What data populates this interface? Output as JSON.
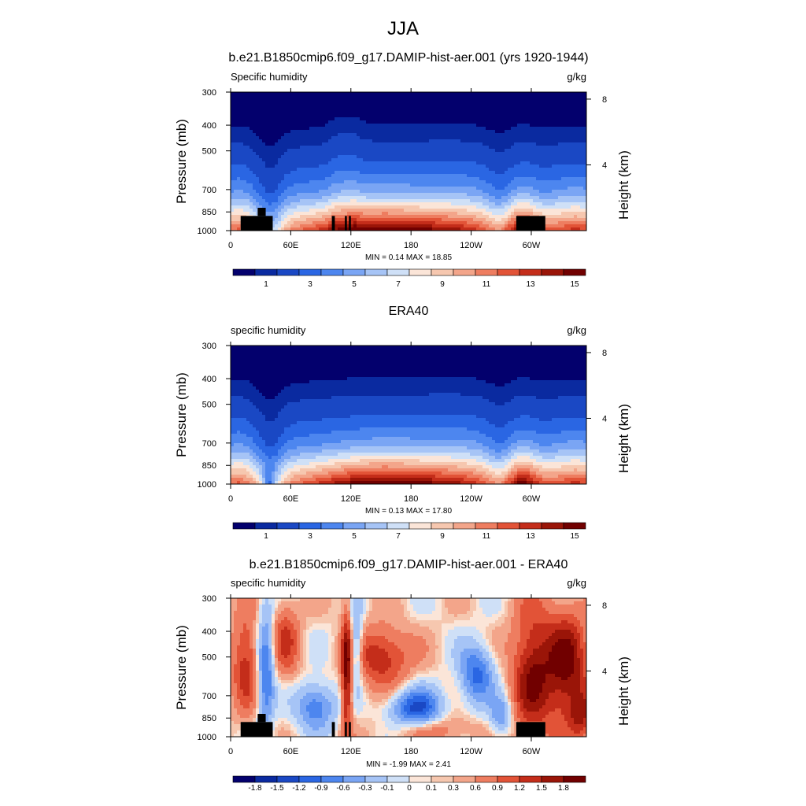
{
  "page_title": "JJA",
  "colors": {
    "abs": [
      "#03006d",
      "#0a2aa0",
      "#1a48c4",
      "#2a66e3",
      "#4d86ef",
      "#7aa5f4",
      "#a6c4f6",
      "#cfe0f7",
      "#fbe5d8",
      "#f6c7af",
      "#f3a58a",
      "#ee7d60",
      "#e25337",
      "#c42d1a",
      "#9a1508",
      "#710000"
    ],
    "diff": [
      "#03006d",
      "#0a2aa0",
      "#1a48c4",
      "#2a66e3",
      "#4d86ef",
      "#7aa5f4",
      "#a6c4f6",
      "#cfe0f7",
      "#fbe5d8",
      "#f6c7af",
      "#f3a58a",
      "#ee7d60",
      "#e25337",
      "#c42d1a",
      "#9a1508",
      "#710000"
    ],
    "terrain": "#000000"
  },
  "chart_data": [
    {
      "type": "heatmap",
      "title": "b.e21.B1850cmip6.f09_g17.DAMIP-hist-aer.001 (yrs 1920-1944)",
      "left_label": "Specific humidity",
      "units": "g/kg",
      "ylabel": "Pressure (mb)",
      "y2label": "Height (km)",
      "field": "model",
      "x_ticks": [
        "0",
        "60E",
        "120E",
        "180",
        "120W",
        "60W"
      ],
      "x_tick_values": [
        0,
        60,
        120,
        180,
        240,
        300
      ],
      "xlim": [
        0,
        355
      ],
      "y_ticks": [
        "300",
        "400",
        "500",
        "700",
        "850",
        "1000"
      ],
      "y_tick_values": [
        300,
        400,
        500,
        700,
        850,
        1000
      ],
      "ylim": [
        1000,
        300
      ],
      "y2_ticks": [
        "8",
        "4"
      ],
      "y2_tick_values": [
        8,
        4
      ],
      "stats": "MIN =   0.14  MAX =  18.85",
      "min": 0.14,
      "max": 18.85,
      "levels": [
        0.5,
        1,
        2,
        3,
        4,
        5,
        6,
        7,
        8,
        9,
        10,
        11,
        12,
        13,
        14
      ],
      "colorbar_labels": [
        "1",
        "3",
        "5",
        "7",
        "9",
        "11",
        "13",
        "15"
      ],
      "colorbar_label_values": [
        1,
        3,
        5,
        7,
        9,
        11,
        13,
        15
      ],
      "has_terrain": true
    },
    {
      "type": "heatmap",
      "title": "ERA40",
      "left_label": "specific humidity",
      "units": "g/kg",
      "ylabel": "Pressure (mb)",
      "y2label": "Height (km)",
      "field": "obs",
      "x_ticks": [
        "0",
        "60E",
        "120E",
        "180",
        "120W",
        "60W"
      ],
      "x_tick_values": [
        0,
        60,
        120,
        180,
        240,
        300
      ],
      "xlim": [
        0,
        355
      ],
      "y_ticks": [
        "300",
        "400",
        "500",
        "700",
        "850",
        "1000"
      ],
      "y_tick_values": [
        300,
        400,
        500,
        700,
        850,
        1000
      ],
      "ylim": [
        1000,
        300
      ],
      "y2_ticks": [
        "8",
        "4"
      ],
      "y2_tick_values": [
        8,
        4
      ],
      "stats": "MIN =   0.13  MAX =  17.80",
      "min": 0.13,
      "max": 17.8,
      "levels": [
        0.5,
        1,
        2,
        3,
        4,
        5,
        6,
        7,
        8,
        9,
        10,
        11,
        12,
        13,
        14
      ],
      "colorbar_labels": [
        "1",
        "3",
        "5",
        "7",
        "9",
        "11",
        "13",
        "15"
      ],
      "colorbar_label_values": [
        1,
        3,
        5,
        7,
        9,
        11,
        13,
        15
      ],
      "has_terrain": false
    },
    {
      "type": "heatmap",
      "title": "b.e21.B1850cmip6.f09_g17.DAMIP-hist-aer.001 - ERA40",
      "left_label": "specific humidity",
      "units": "g/kg",
      "ylabel": "Pressure (mb)",
      "y2label": "Height (km)",
      "field": "diff",
      "x_ticks": [
        "0",
        "60E",
        "120E",
        "180",
        "120W",
        "60W"
      ],
      "x_tick_values": [
        0,
        60,
        120,
        180,
        240,
        300
      ],
      "xlim": [
        0,
        355
      ],
      "y_ticks": [
        "300",
        "400",
        "500",
        "700",
        "850",
        "1000"
      ],
      "y_tick_values": [
        300,
        400,
        500,
        700,
        850,
        1000
      ],
      "ylim": [
        1000,
        300
      ],
      "y2_ticks": [
        "8",
        "4"
      ],
      "y2_tick_values": [
        8,
        4
      ],
      "stats": "MIN =  -1.99  MAX =   2.41",
      "min": -1.99,
      "max": 2.41,
      "levels": [
        -2.0,
        -1.8,
        -1.5,
        -1.2,
        -0.9,
        -0.6,
        -0.3,
        -0.1,
        0,
        0.1,
        0.3,
        0.6,
        0.9,
        1.2,
        1.5,
        1.8
      ],
      "colorbar_labels": [
        "-1.8",
        "-1.5",
        "-1.2",
        "-0.9",
        "-0.6",
        "-0.3",
        "-0.1",
        "0",
        "0.1",
        "0.3",
        "0.6",
        "0.9",
        "1.2",
        "1.5",
        "1.8"
      ],
      "colorbar_label_values": [
        -1.8,
        -1.5,
        -1.2,
        -0.9,
        -0.6,
        -0.3,
        -0.1,
        0,
        0.1,
        0.3,
        0.6,
        0.9,
        1.2,
        1.5,
        1.8
      ],
      "has_terrain": true
    }
  ]
}
